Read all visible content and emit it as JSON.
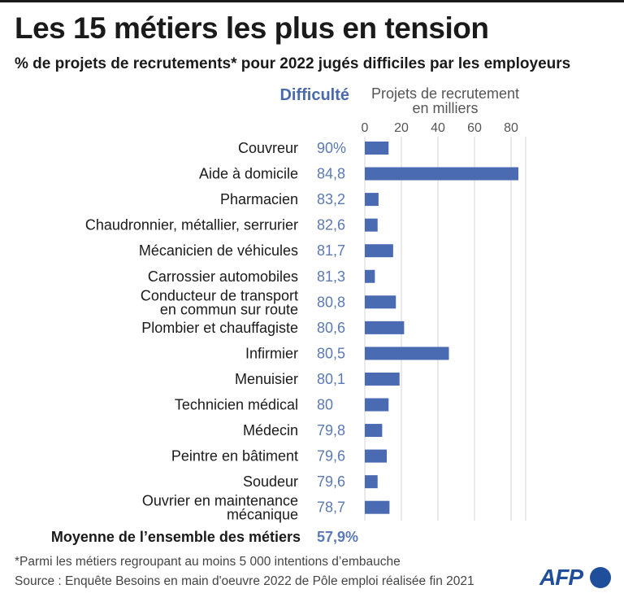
{
  "title": "Les 15 métiers les plus en tension",
  "subtitle": "% de projets de recrutements* pour 2022 jugés difficiles par les employeurs",
  "column_difficulty_label": "Difficulté",
  "column_projects_label_line1": "Projets de recrutement",
  "column_projects_label_line2": "en milliers",
  "footnote": "*Parmi les métiers regroupant au moins 5 000 intentions d’embauche",
  "source": "Source : Enquête Besoins en main d'oeuvre 2022 de Pôle emploi réalisée fin 2021",
  "logo_text": "AFP",
  "colors": {
    "bar": "#4a6ab2",
    "difficulty_text": "#5a79b5",
    "grid": "#d6d6d6"
  },
  "chart_data": {
    "type": "bar",
    "orientation": "horizontal",
    "xlim": [
      0,
      88
    ],
    "x_ticks": [
      "0",
      "20",
      "40",
      "60",
      "80"
    ],
    "grid": true,
    "rows": [
      {
        "label": [
          "Couvreur"
        ],
        "difficulty": "90%",
        "value": 13
      },
      {
        "label": [
          "Aide à domicile"
        ],
        "difficulty": "84,8",
        "value": 84
      },
      {
        "label": [
          "Pharmacien"
        ],
        "difficulty": "83,2",
        "value": 7.5
      },
      {
        "label": [
          "Chaudronnier, métallier, serrurier"
        ],
        "difficulty": "82,6",
        "value": 7
      },
      {
        "label": [
          "Mécanicien de véhicules"
        ],
        "difficulty": "81,7",
        "value": 15.5
      },
      {
        "label": [
          "Carrossier automobiles"
        ],
        "difficulty": "81,3",
        "value": 5.5
      },
      {
        "label": [
          "Conducteur de transport",
          "en commun sur route"
        ],
        "difficulty": "80,8",
        "value": 17
      },
      {
        "label": [
          "Plombier et chauffagiste"
        ],
        "difficulty": "80,6",
        "value": 21.5
      },
      {
        "label": [
          "Infirmier"
        ],
        "difficulty": "80,5",
        "value": 46
      },
      {
        "label": [
          "Menuisier"
        ],
        "difficulty": "80,1",
        "value": 19
      },
      {
        "label": [
          "Technicien médical"
        ],
        "difficulty": "80",
        "value": 13
      },
      {
        "label": [
          "Médecin"
        ],
        "difficulty": "79,8",
        "value": 9.5
      },
      {
        "label": [
          "Peintre en bâtiment"
        ],
        "difficulty": "79,6",
        "value": 12
      },
      {
        "label": [
          "Soudeur"
        ],
        "difficulty": "79,6",
        "value": 7
      },
      {
        "label": [
          "Ouvrier en maintenance",
          "mécanique"
        ],
        "difficulty": "78,7",
        "value": 13.5
      }
    ],
    "average": {
      "label": "Moyenne de l’ensemble des métiers",
      "difficulty": "57,9%"
    }
  }
}
